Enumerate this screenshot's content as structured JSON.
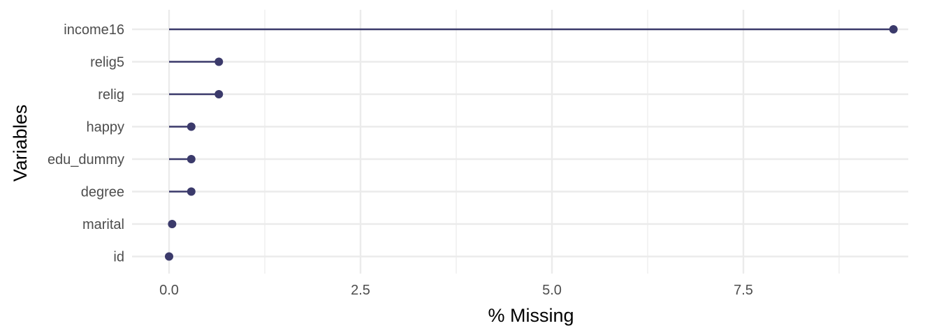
{
  "chart_data": {
    "type": "lollipop",
    "xlabel": "% Missing",
    "ylabel": "Variables",
    "xlim": [
      -0.2,
      9.8
    ],
    "x_ticks": [
      0.0,
      2.5,
      5.0,
      7.5
    ],
    "x_tick_labels": [
      "0.0",
      "2.5",
      "5.0",
      "7.5"
    ],
    "categories": [
      "id",
      "marital",
      "degree",
      "edu_dummy",
      "happy",
      "relig",
      "relig5",
      "income16"
    ],
    "values": [
      0.0,
      0.04,
      0.29,
      0.29,
      0.29,
      0.65,
      0.65,
      9.46
    ],
    "grid": true,
    "colors": {
      "series": "#3b3a6b",
      "grid": "#ebebeb",
      "text": "#4d4d4d"
    }
  }
}
